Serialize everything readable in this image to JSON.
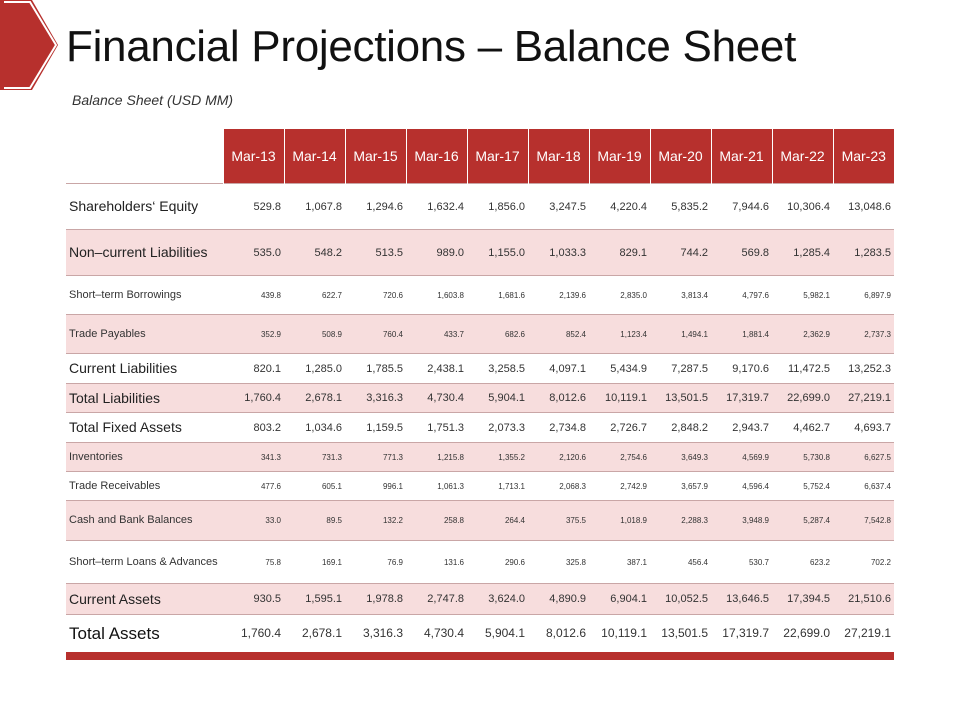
{
  "title": "Financial Projections – Balance Sheet",
  "subtitle": "Balance Sheet (USD MM)",
  "colors": {
    "accent": "#b7302d",
    "row_alt": "#f7dddd"
  },
  "columns": [
    "Mar-13",
    "Mar-14",
    "Mar-15",
    "Mar-16",
    "Mar-17",
    "Mar-18",
    "Mar-19",
    "Mar-20",
    "Mar-21",
    "Mar-22",
    "Mar-23"
  ],
  "rows": [
    {
      "label": "Shareholders‘ Equity",
      "values": [
        "529.8",
        "1,067.8",
        "1,294.6",
        "1,632.4",
        "1,856.0",
        "3,247.5",
        "4,220.4",
        "5,835.2",
        "7,944.6",
        "10,306.4",
        "13,048.6"
      ]
    },
    {
      "label": "Non–current Liabilities",
      "values": [
        "535.0",
        "548.2",
        "513.5",
        "989.0",
        "1,155.0",
        "1,033.3",
        "829.1",
        "744.2",
        "569.8",
        "1,285.4",
        "1,283.5"
      ]
    },
    {
      "label": "Short–term Borrowings",
      "values": [
        "439.8",
        "622.7",
        "720.6",
        "1,603.8",
        "1,681.6",
        "2,139.6",
        "2,835.0",
        "3,813.4",
        "4,797.6",
        "5,982.1",
        "6,897.9"
      ]
    },
    {
      "label": "Trade Payables",
      "values": [
        "352.9",
        "508.9",
        "760.4",
        "433.7",
        "682.6",
        "852.4",
        "1,123.4",
        "1,494.1",
        "1,881.4",
        "2,362.9",
        "2,737.3"
      ]
    },
    {
      "label": "Current Liabilities",
      "values": [
        "820.1",
        "1,285.0",
        "1,785.5",
        "2,438.1",
        "3,258.5",
        "4,097.1",
        "5,434.9",
        "7,287.5",
        "9,170.6",
        "11,472.5",
        "13,252.3"
      ]
    },
    {
      "label": "Total Liabilities",
      "values": [
        "1,760.4",
        "2,678.1",
        "3,316.3",
        "4,730.4",
        "5,904.1",
        "8,012.6",
        "10,119.1",
        "13,501.5",
        "17,319.7",
        "22,699.0",
        "27,219.1"
      ]
    },
    {
      "label": "Total Fixed Assets",
      "values": [
        "803.2",
        "1,034.6",
        "1,159.5",
        "1,751.3",
        "2,073.3",
        "2,734.8",
        "2,726.7",
        "2,848.2",
        "2,943.7",
        "4,462.7",
        "4,693.7"
      ]
    },
    {
      "label": "Inventories",
      "values": [
        "341.3",
        "731.3",
        "771.3",
        "1,215.8",
        "1,355.2",
        "2,120.6",
        "2,754.6",
        "3,649.3",
        "4,569.9",
        "5,730.8",
        "6,627.5"
      ]
    },
    {
      "label": "Trade Receivables",
      "values": [
        "477.6",
        "605.1",
        "996.1",
        "1,061.3",
        "1,713.1",
        "2,068.3",
        "2,742.9",
        "3,657.9",
        "4,596.4",
        "5,752.4",
        "6,637.4"
      ]
    },
    {
      "label": "Cash and Bank Balances",
      "values": [
        "33.0",
        "89.5",
        "132.2",
        "258.8",
        "264.4",
        "375.5",
        "1,018.9",
        "2,288.3",
        "3,948.9",
        "5,287.4",
        "7,542.8"
      ]
    },
    {
      "label": "Short–term Loans & Advances",
      "values": [
        "75.8",
        "169.1",
        "76.9",
        "131.6",
        "290.6",
        "325.8",
        "387.1",
        "456.4",
        "530.7",
        "623.2",
        "702.2"
      ]
    },
    {
      "label": "Current Assets",
      "values": [
        "930.5",
        "1,595.1",
        "1,978.8",
        "2,747.8",
        "3,624.0",
        "4,890.9",
        "6,904.1",
        "10,052.5",
        "13,646.5",
        "17,394.5",
        "21,510.6"
      ]
    },
    {
      "label": "Total Assets",
      "values": [
        "1,760.4",
        "2,678.1",
        "3,316.3",
        "4,730.4",
        "5,904.1",
        "8,012.6",
        "10,119.1",
        "13,501.5",
        "17,319.7",
        "22,699.0",
        "27,219.1"
      ]
    }
  ]
}
